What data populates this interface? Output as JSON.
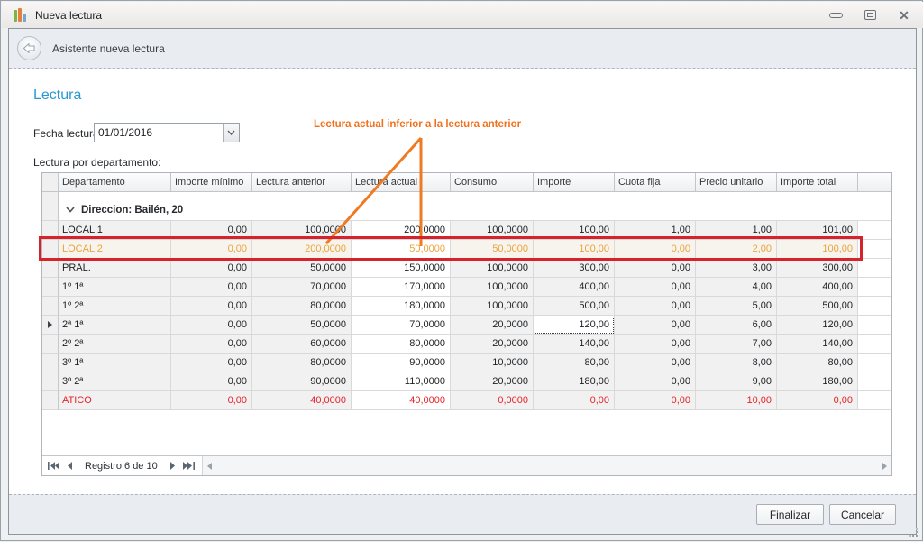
{
  "titlebar": {
    "title": "Nueva lectura"
  },
  "wizard_header": {
    "title": "Asistente nueva lectura"
  },
  "section": {
    "title": "Lectura"
  },
  "form": {
    "date_label": "Fecha lectura:",
    "date_value": "01/01/2016",
    "grid_label": "Lectura por departamento:"
  },
  "annotation": {
    "text": "Lectura actual inferior a la lectura anterior"
  },
  "grid": {
    "columns": [
      "Departamento",
      "Importe mínimo",
      "Lectura anterior",
      "Lectura actual",
      "Consumo",
      "Importe",
      "Cuota fija",
      "Precio unitario",
      "Importe total"
    ],
    "group_header": "Direccion: Bailén, 20",
    "rows": [
      {
        "cells": [
          "LOCAL 1",
          "0,00",
          "100,0000",
          "200,0000",
          "100,0000",
          "100,00",
          "1,00",
          "1,00",
          "101,00"
        ],
        "state": "normal"
      },
      {
        "cells": [
          "LOCAL 2",
          "0,00",
          "200,0000",
          "50,0000",
          "50,0000",
          "100,00",
          "0,00",
          "2,00",
          "100,00"
        ],
        "state": "warning",
        "annotated": true
      },
      {
        "cells": [
          "PRAL.",
          "0,00",
          "50,0000",
          "150,0000",
          "100,0000",
          "300,00",
          "0,00",
          "3,00",
          "300,00"
        ],
        "state": "normal"
      },
      {
        "cells": [
          "1º 1ª",
          "0,00",
          "70,0000",
          "170,0000",
          "100,0000",
          "400,00",
          "0,00",
          "4,00",
          "400,00"
        ],
        "state": "normal"
      },
      {
        "cells": [
          "1º 2ª",
          "0,00",
          "80,0000",
          "180,0000",
          "100,0000",
          "500,00",
          "0,00",
          "5,00",
          "500,00"
        ],
        "state": "normal"
      },
      {
        "cells": [
          "2ª 1ª",
          "0,00",
          "50,0000",
          "70,0000",
          "20,0000",
          "120,00",
          "0,00",
          "6,00",
          "120,00"
        ],
        "state": "normal",
        "current": true,
        "focused_col": 5
      },
      {
        "cells": [
          "2º 2ª",
          "0,00",
          "60,0000",
          "80,0000",
          "20,0000",
          "140,00",
          "0,00",
          "7,00",
          "140,00"
        ],
        "state": "normal"
      },
      {
        "cells": [
          "3º 1ª",
          "0,00",
          "80,0000",
          "90,0000",
          "10,0000",
          "80,00",
          "0,00",
          "8,00",
          "80,00"
        ],
        "state": "normal"
      },
      {
        "cells": [
          "3º 2ª",
          "0,00",
          "90,0000",
          "110,0000",
          "20,0000",
          "180,00",
          "0,00",
          "9,00",
          "180,00"
        ],
        "state": "normal"
      },
      {
        "cells": [
          "ATICO",
          "0,00",
          "40,0000",
          "40,0000",
          "0,0000",
          "0,00",
          "0,00",
          "10,00",
          "0,00"
        ],
        "state": "error"
      }
    ],
    "navigator": {
      "status": "Registro 6 de 10"
    }
  },
  "footer": {
    "finish_label": "Finalizar",
    "cancel_label": "Cancelar"
  },
  "colors": {
    "accent_blue": "#2998d5",
    "warning_orange_text": "#e9a43e",
    "annotation_orange": "#f2701d",
    "error_red": "#e5232b",
    "highlight_box_red": "#d6222b",
    "band_background": "#e9edf2"
  }
}
